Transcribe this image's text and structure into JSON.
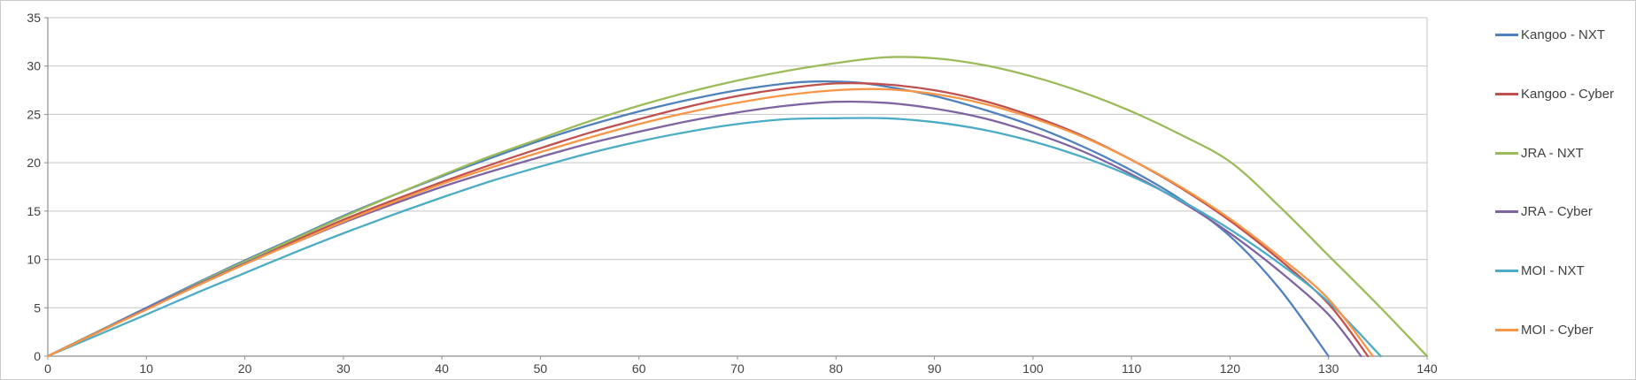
{
  "chart": {
    "colors": {
      "background": "#FFFFFF",
      "border": "#C9C9C9",
      "gridline": "#C5C5C5",
      "axis": "#8E8E8E",
      "tick_text": "#404040",
      "legend_text": "#404040"
    }
  },
  "chart_data": {
    "type": "line",
    "title": "",
    "xlabel": "",
    "ylabel": "",
    "xlim": [
      0,
      140
    ],
    "ylim": [
      0,
      35
    ],
    "x_ticks": [
      0,
      10,
      20,
      30,
      40,
      50,
      60,
      70,
      80,
      90,
      100,
      110,
      120,
      130,
      140
    ],
    "y_ticks": [
      0,
      5,
      10,
      15,
      20,
      25,
      30,
      35
    ],
    "grid": "horizontal-only",
    "legend_position": "right",
    "series": [
      {
        "name": "Kangoo - NXT",
        "color": "#4F81BD",
        "points": [
          [
            0,
            0
          ],
          [
            5,
            2.5
          ],
          [
            10,
            5.0
          ],
          [
            15,
            7.5
          ],
          [
            20,
            9.9
          ],
          [
            25,
            12.2
          ],
          [
            30,
            14.5
          ],
          [
            35,
            16.6
          ],
          [
            40,
            18.6
          ],
          [
            45,
            20.5
          ],
          [
            50,
            22.3
          ],
          [
            55,
            23.9
          ],
          [
            60,
            25.3
          ],
          [
            65,
            26.5
          ],
          [
            70,
            27.5
          ],
          [
            75,
            28.2
          ],
          [
            78,
            28.4
          ],
          [
            82,
            28.3
          ],
          [
            85,
            27.9
          ],
          [
            90,
            26.9
          ],
          [
            95,
            25.5
          ],
          [
            100,
            23.8
          ],
          [
            105,
            21.7
          ],
          [
            110,
            19.2
          ],
          [
            115,
            16.2
          ],
          [
            120,
            12.4
          ],
          [
            125,
            7.0
          ],
          [
            130,
            0
          ]
        ]
      },
      {
        "name": "Kangoo - Cyber",
        "color": "#C0504D",
        "points": [
          [
            0,
            0
          ],
          [
            5,
            2.45
          ],
          [
            10,
            4.9
          ],
          [
            15,
            7.3
          ],
          [
            20,
            9.7
          ],
          [
            25,
            11.9
          ],
          [
            30,
            14.1
          ],
          [
            35,
            16.1
          ],
          [
            40,
            18.0
          ],
          [
            45,
            19.8
          ],
          [
            50,
            21.5
          ],
          [
            55,
            23.1
          ],
          [
            60,
            24.5
          ],
          [
            65,
            25.8
          ],
          [
            70,
            26.9
          ],
          [
            75,
            27.7
          ],
          [
            80,
            28.2
          ],
          [
            85,
            28.1
          ],
          [
            90,
            27.5
          ],
          [
            95,
            26.4
          ],
          [
            100,
            24.8
          ],
          [
            105,
            22.8
          ],
          [
            110,
            20.3
          ],
          [
            115,
            17.4
          ],
          [
            120,
            14.0
          ],
          [
            125,
            10.0
          ],
          [
            130,
            5.4
          ],
          [
            134,
            0
          ]
        ]
      },
      {
        "name": "JRA - NXT",
        "color": "#9BBB59",
        "points": [
          [
            0,
            0
          ],
          [
            5,
            2.5
          ],
          [
            10,
            4.9
          ],
          [
            15,
            7.4
          ],
          [
            20,
            9.8
          ],
          [
            25,
            12.1
          ],
          [
            30,
            14.4
          ],
          [
            35,
            16.6
          ],
          [
            40,
            18.7
          ],
          [
            45,
            20.7
          ],
          [
            50,
            22.5
          ],
          [
            55,
            24.3
          ],
          [
            60,
            25.9
          ],
          [
            65,
            27.3
          ],
          [
            70,
            28.5
          ],
          [
            75,
            29.5
          ],
          [
            80,
            30.3
          ],
          [
            85,
            30.9
          ],
          [
            90,
            30.8
          ],
          [
            95,
            30.1
          ],
          [
            100,
            28.9
          ],
          [
            105,
            27.3
          ],
          [
            110,
            25.3
          ],
          [
            115,
            22.9
          ],
          [
            120,
            20.1
          ],
          [
            125,
            15.5
          ],
          [
            130,
            10.4
          ],
          [
            135,
            5.3
          ],
          [
            140,
            0
          ]
        ]
      },
      {
        "name": "JRA - Cyber",
        "color": "#8064A2",
        "points": [
          [
            0,
            0
          ],
          [
            5,
            2.45
          ],
          [
            10,
            4.9
          ],
          [
            15,
            7.3
          ],
          [
            20,
            9.6
          ],
          [
            25,
            11.7
          ],
          [
            30,
            13.8
          ],
          [
            35,
            15.7
          ],
          [
            40,
            17.5
          ],
          [
            45,
            19.1
          ],
          [
            50,
            20.6
          ],
          [
            55,
            22.0
          ],
          [
            60,
            23.2
          ],
          [
            65,
            24.3
          ],
          [
            70,
            25.2
          ],
          [
            75,
            25.9
          ],
          [
            80,
            26.3
          ],
          [
            85,
            26.2
          ],
          [
            90,
            25.6
          ],
          [
            95,
            24.6
          ],
          [
            100,
            23.1
          ],
          [
            105,
            21.2
          ],
          [
            110,
            18.8
          ],
          [
            115,
            16.0
          ],
          [
            120,
            12.7
          ],
          [
            125,
            8.8
          ],
          [
            130,
            4.3
          ],
          [
            133.3,
            0
          ]
        ]
      },
      {
        "name": "MOI - NXT",
        "color": "#4BACC6",
        "points": [
          [
            0,
            0
          ],
          [
            5,
            2.15
          ],
          [
            10,
            4.3
          ],
          [
            15,
            6.5
          ],
          [
            20,
            8.6
          ],
          [
            25,
            10.7
          ],
          [
            30,
            12.7
          ],
          [
            35,
            14.6
          ],
          [
            40,
            16.4
          ],
          [
            45,
            18.1
          ],
          [
            50,
            19.6
          ],
          [
            55,
            21.0
          ],
          [
            60,
            22.2
          ],
          [
            65,
            23.2
          ],
          [
            70,
            24.0
          ],
          [
            75,
            24.5
          ],
          [
            80,
            24.6
          ],
          [
            85,
            24.6
          ],
          [
            90,
            24.2
          ],
          [
            95,
            23.4
          ],
          [
            100,
            22.2
          ],
          [
            105,
            20.6
          ],
          [
            110,
            18.6
          ],
          [
            115,
            16.1
          ],
          [
            120,
            13.1
          ],
          [
            125,
            9.6
          ],
          [
            130,
            5.6
          ],
          [
            135.3,
            0
          ]
        ]
      },
      {
        "name": "MOI - Cyber",
        "color": "#F79646",
        "points": [
          [
            0,
            0
          ],
          [
            5,
            2.4
          ],
          [
            10,
            4.8
          ],
          [
            15,
            7.2
          ],
          [
            20,
            9.5
          ],
          [
            25,
            11.7
          ],
          [
            30,
            13.9
          ],
          [
            35,
            15.9
          ],
          [
            40,
            17.8
          ],
          [
            45,
            19.5
          ],
          [
            50,
            21.1
          ],
          [
            55,
            22.6
          ],
          [
            60,
            24.0
          ],
          [
            65,
            25.2
          ],
          [
            70,
            26.2
          ],
          [
            75,
            27.0
          ],
          [
            80,
            27.5
          ],
          [
            85,
            27.6
          ],
          [
            90,
            27.1
          ],
          [
            95,
            26.1
          ],
          [
            100,
            24.6
          ],
          [
            105,
            22.7
          ],
          [
            110,
            20.3
          ],
          [
            115,
            17.5
          ],
          [
            120,
            14.2
          ],
          [
            125,
            10.3
          ],
          [
            130,
            5.9
          ],
          [
            134.5,
            0
          ]
        ]
      }
    ]
  }
}
